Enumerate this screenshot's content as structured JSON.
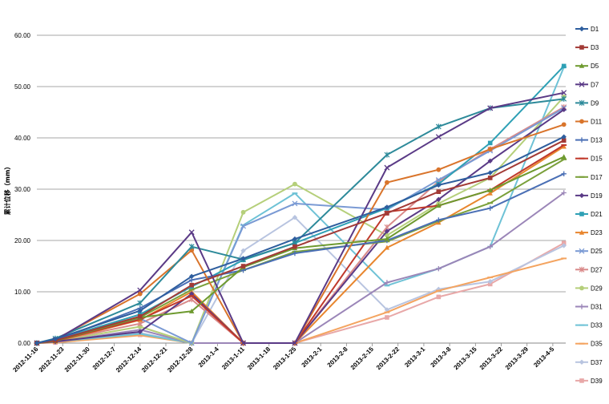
{
  "chart_data": {
    "type": "line",
    "ylabel": "累计位移（mm）",
    "xlabel": "",
    "title": "",
    "ylim": [
      0,
      60
    ],
    "yticks": [
      "0.00",
      "10.00",
      "20.00",
      "30.00",
      "40.00",
      "50.00",
      "60.00"
    ],
    "categories": [
      "2012-11-16",
      "2012-11-23",
      "2012-11-30",
      "2012-12-7",
      "2012-12-14",
      "2012-12-21",
      "2012-12-28",
      "2013-1-4",
      "2013-1-11",
      "2013-1-18",
      "2013-1-25",
      "2013-2-1",
      "2013-2-8",
      "2013-2-15",
      "2013-2-22",
      "2013-3-1",
      "2013-3-8",
      "2013-3-15",
      "2013-3-22",
      "2013-3-29",
      "2013-4-5"
    ],
    "grid": "horizontal",
    "legend_position": "right",
    "series": [
      {
        "name": "D1",
        "color": "#2E5E9E",
        "marker": "diamond",
        "x": [
          "2012-11-16",
          "2012-11-21",
          "2012-12-14",
          "2012-12-28",
          "2013-1-11",
          "2013-1-25",
          "2013-2-19",
          "2013-3-5",
          "2013-3-19",
          "2013-4-8"
        ],
        "values": [
          0,
          0.8,
          6.3,
          13.0,
          16.5,
          20.3,
          26.5,
          30.8,
          33.2,
          40.2
        ]
      },
      {
        "name": "D3",
        "color": "#A23A36",
        "marker": "square",
        "x": [
          "2012-11-16",
          "2012-11-21",
          "2012-12-14",
          "2012-12-28",
          "2013-1-11",
          "2013-1-25",
          "2013-2-19",
          "2013-3-5",
          "2013-3-19",
          "2013-4-8"
        ],
        "values": [
          0,
          0.5,
          5.2,
          11.3,
          15.0,
          18.8,
          25.3,
          29.5,
          32.2,
          39.5
        ]
      },
      {
        "name": "D5",
        "color": "#6E9A2F",
        "marker": "triangle",
        "x": [
          "2012-11-16",
          "2012-11-21",
          "2012-12-14",
          "2012-12-28",
          "2013-1-11",
          "2013-1-25",
          "2013-2-19",
          "2013-3-5",
          "2013-3-19",
          "2013-4-8"
        ],
        "values": [
          0,
          0.4,
          5.0,
          6.2,
          14.8,
          18.5,
          20.3,
          26.8,
          29.8,
          36.3
        ]
      },
      {
        "name": "D7",
        "color": "#5A3A86",
        "marker": "x",
        "x": [
          "2012-11-16",
          "2012-11-21",
          "2012-12-14",
          "2012-12-28",
          "2013-1-11",
          "2013-1-25",
          "2013-2-19",
          "2013-3-5",
          "2013-3-19",
          "2013-4-8"
        ],
        "values": [
          0,
          0.6,
          10.3,
          21.6,
          0,
          0,
          34.2,
          40.2,
          45.8,
          48.8
        ]
      },
      {
        "name": "D9",
        "color": "#2D8A9A",
        "marker": "star",
        "x": [
          "2012-11-16",
          "2012-11-21",
          "2012-12-14",
          "2012-12-28",
          "2013-1-11",
          "2013-1-25",
          "2013-2-19",
          "2013-3-5",
          "2013-3-19",
          "2013-4-8"
        ],
        "values": [
          0,
          0.9,
          7.8,
          18.8,
          16.3,
          19.5,
          36.7,
          42.2,
          45.8,
          47.6
        ]
      },
      {
        "name": "D11",
        "color": "#D9742B",
        "marker": "circle",
        "x": [
          "2012-11-16",
          "2012-11-21",
          "2012-12-14",
          "2012-12-28",
          "2013-1-11",
          "2013-1-25",
          "2013-2-19",
          "2013-3-5",
          "2013-3-19",
          "2013-4-8"
        ],
        "values": [
          0,
          0.7,
          9.6,
          18.1,
          0,
          0,
          31.3,
          33.8,
          37.8,
          42.6
        ]
      },
      {
        "name": "D13",
        "color": "#4A6FB5",
        "marker": "plus",
        "x": [
          "2012-11-16",
          "2012-11-21",
          "2012-12-14",
          "2012-12-28",
          "2013-1-11",
          "2013-1-25",
          "2013-2-19",
          "2013-3-5",
          "2013-3-19",
          "2013-4-8"
        ],
        "values": [
          0,
          0.5,
          6.8,
          12.3,
          14.2,
          17.5,
          20.0,
          24.0,
          26.3,
          33.0
        ]
      },
      {
        "name": "D15",
        "color": "#C0392B",
        "marker": "dash",
        "x": [
          "2012-11-16",
          "2012-11-21",
          "2012-12-14",
          "2012-12-28",
          "2013-1-11",
          "2013-1-25",
          "2013-2-19",
          "2013-3-5",
          "2013-3-19",
          "2013-4-8"
        ],
        "values": [
          0,
          0.4,
          4.6,
          9.2,
          0,
          0,
          25.6,
          26.8,
          29.8,
          38.6
        ]
      },
      {
        "name": "D17",
        "color": "#7AA03A",
        "marker": "dash",
        "x": [
          "2012-11-16",
          "2012-11-21",
          "2012-12-14",
          "2012-12-28",
          "2013-1-11",
          "2013-1-25",
          "2013-2-19",
          "2013-3-5",
          "2013-3-19",
          "2013-4-8"
        ],
        "values": [
          0,
          0.4,
          5.0,
          10.4,
          14.2,
          17.8,
          19.8,
          23.8,
          27.3,
          35.8
        ]
      },
      {
        "name": "D19",
        "color": "#5A3A86",
        "marker": "diamond",
        "x": [
          "2012-11-16",
          "2012-11-21",
          "2012-12-14",
          "2012-12-28",
          "2013-1-11",
          "2013-1-25",
          "2013-2-19",
          "2013-3-5",
          "2013-3-19",
          "2013-4-8"
        ],
        "values": [
          0,
          0.3,
          2.2,
          9.6,
          0,
          0,
          21.8,
          28.0,
          35.5,
          45.5
        ]
      },
      {
        "name": "D21",
        "color": "#2EA0B5",
        "marker": "square",
        "x": [
          "2012-11-16",
          "2012-11-21",
          "2012-12-14",
          "2012-12-28",
          "2013-1-11",
          "2013-1-25",
          "2013-2-19",
          "2013-3-5",
          "2013-3-19",
          "2013-4-8"
        ],
        "values": [
          0,
          0.6,
          5.6,
          11.0,
          16.2,
          19.5,
          26.3,
          31.0,
          39.0,
          54.0
        ]
      },
      {
        "name": "D23",
        "color": "#E8862E",
        "marker": "triangle",
        "x": [
          "2012-11-16",
          "2012-11-21",
          "2012-12-14",
          "2012-12-28",
          "2013-1-11",
          "2013-1-25",
          "2013-2-19",
          "2013-3-5",
          "2013-3-19",
          "2013-4-8"
        ],
        "values": [
          0,
          0.3,
          4.5,
          10.0,
          0,
          0,
          18.6,
          23.5,
          29.2,
          38.3
        ]
      },
      {
        "name": "D25",
        "color": "#7A9AD4",
        "marker": "x",
        "x": [
          "2012-11-16",
          "2012-11-21",
          "2012-12-14",
          "2012-12-28",
          "2013-1-11",
          "2013-1-25",
          "2013-2-19",
          "2013-3-5",
          "2013-3-19",
          "2013-4-8"
        ],
        "values": [
          0,
          0.5,
          4.8,
          0,
          22.8,
          27.2,
          26.0,
          31.8,
          37.5,
          45.8
        ]
      },
      {
        "name": "D27",
        "color": "#D98A8A",
        "marker": "star",
        "x": [
          "2012-11-16",
          "2012-11-21",
          "2012-12-14",
          "2012-12-28",
          "2013-1-11",
          "2013-1-25",
          "2013-2-19",
          "2013-3-5",
          "2013-3-19",
          "2013-4-8"
        ],
        "values": [
          0,
          0.4,
          3.8,
          8.5,
          0,
          0,
          22.6,
          31.5,
          37.8,
          46.0
        ]
      },
      {
        "name": "D29",
        "color": "#B5CF7A",
        "marker": "circle",
        "x": [
          "2012-11-16",
          "2012-11-21",
          "2012-12-14",
          "2012-12-28",
          "2013-1-11",
          "2013-1-25",
          "2013-2-19",
          "2013-3-5",
          "2013-3-19",
          "2013-4-8"
        ],
        "values": [
          0,
          0.3,
          3.2,
          0,
          25.5,
          31.0,
          21.0,
          27.2,
          32.2,
          48.0
        ]
      },
      {
        "name": "D31",
        "color": "#9B86B8",
        "marker": "plus",
        "x": [
          "2012-11-16",
          "2012-11-21",
          "2012-12-14",
          "2012-12-28",
          "2013-1-11",
          "2013-1-25",
          "2013-2-19",
          "2013-3-5",
          "2013-3-19",
          "2013-4-8"
        ],
        "values": [
          0,
          0.2,
          2.6,
          0,
          0,
          0,
          11.8,
          14.5,
          18.8,
          29.3
        ]
      },
      {
        "name": "D33",
        "color": "#6EC2D6",
        "marker": "dash",
        "x": [
          "2012-11-16",
          "2012-11-21",
          "2012-12-14",
          "2012-12-28",
          "2013-1-11",
          "2013-1-25",
          "2013-2-19",
          "2013-3-5",
          "2013-3-19",
          "2013-4-8"
        ],
        "values": [
          0,
          0.3,
          1.8,
          0,
          23.0,
          29.2,
          11.2,
          14.5,
          18.8,
          53.8
        ]
      },
      {
        "name": "D35",
        "color": "#F4A460",
        "marker": "dash",
        "x": [
          "2012-11-16",
          "2012-11-21",
          "2012-12-14",
          "2012-12-28",
          "2013-1-11",
          "2013-1-25",
          "2013-2-19",
          "2013-3-5",
          "2013-3-19",
          "2013-4-8"
        ],
        "values": [
          0,
          0.1,
          1.5,
          0,
          0,
          0,
          6.0,
          10.2,
          12.8,
          16.5
        ]
      },
      {
        "name": "D37",
        "color": "#B8C4E0",
        "marker": "diamond",
        "x": [
          "2012-11-16",
          "2012-11-21",
          "2012-12-14",
          "2012-12-28",
          "2013-1-11",
          "2013-1-25",
          "2013-2-19",
          "2013-3-5",
          "2013-3-19",
          "2013-4-8"
        ],
        "values": [
          0,
          0.2,
          2.0,
          0,
          18.0,
          24.5,
          6.5,
          10.5,
          12.0,
          19.0
        ]
      },
      {
        "name": "D39",
        "color": "#E8A8A8",
        "marker": "square",
        "x": [
          "2012-11-16",
          "2012-11-21",
          "2012-12-14",
          "2012-12-28",
          "2013-1-11",
          "2013-1-25",
          "2013-2-19",
          "2013-3-5",
          "2013-3-19",
          "2013-4-8"
        ],
        "values": [
          0,
          0.1,
          1.6,
          0,
          0,
          0,
          5.0,
          9.0,
          11.5,
          19.5
        ]
      }
    ]
  }
}
